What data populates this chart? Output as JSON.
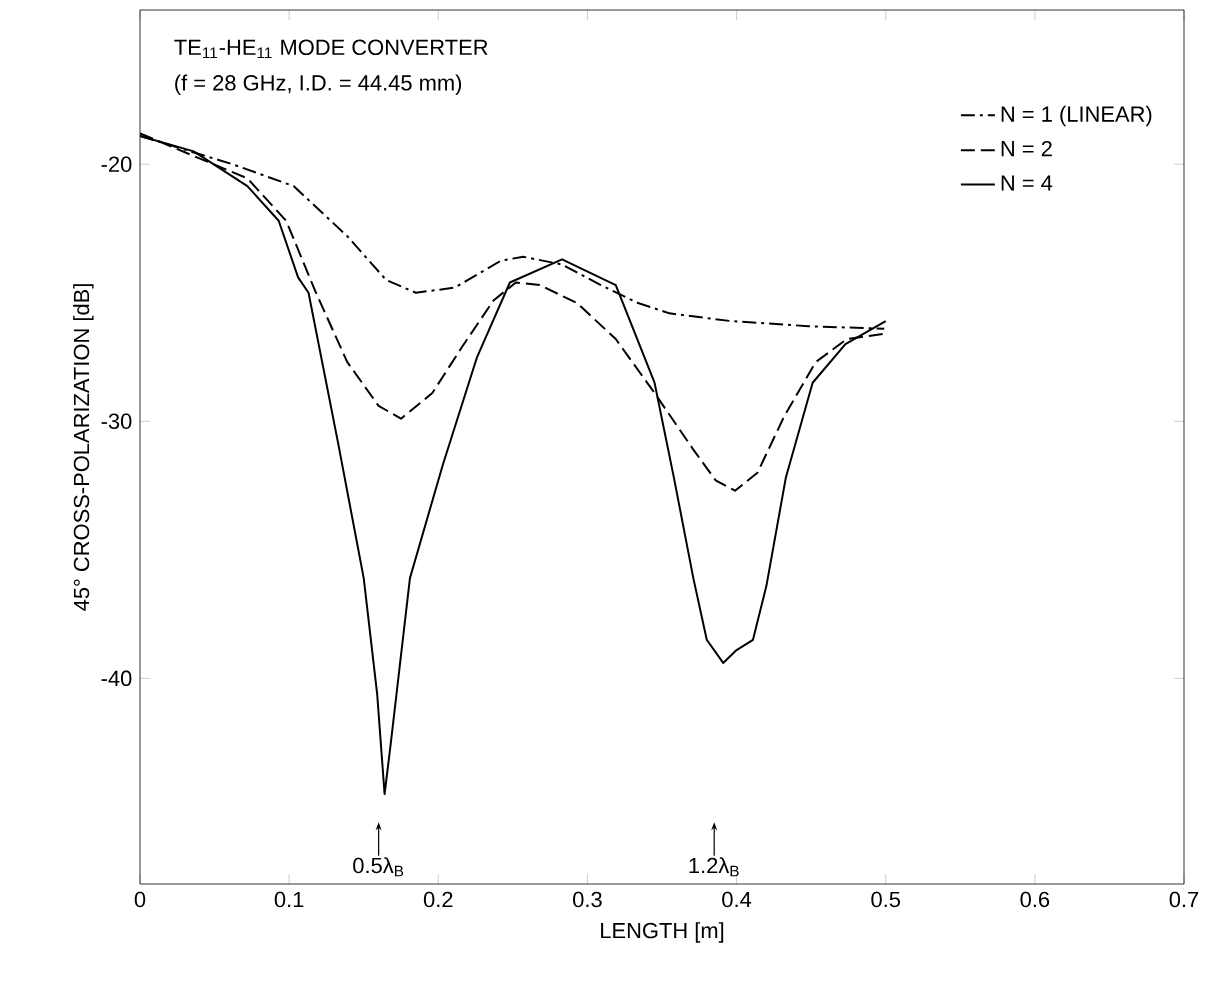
{
  "chart_data": {
    "type": "line",
    "title": "TE$_{11}$-HE$_{11}$ MODE CONVERTER",
    "subtitle": "(f = 28 GHz, I.D. = 44.45 mm)",
    "xlabel": "LENGTH [m]",
    "ylabel": "45° CROSS-POLARIZATION      [dB]",
    "xlim": [
      0,
      0.7
    ],
    "ylim": [
      -48,
      -14
    ],
    "xticks": [
      0,
      {
        "value": 0.1,
        "label": "0.1"
      },
      {
        "value": 0.2,
        "label": "0.2"
      },
      {
        "value": 0.3,
        "label": "0.3"
      },
      {
        "value": 0.4,
        "label": "0.4"
      },
      {
        "value": 0.5,
        "label": "0.5"
      },
      {
        "value": 0.6,
        "label": "0.6"
      },
      {
        "value": 0.7,
        "label": "0.7"
      }
    ],
    "yticks": [
      -20,
      -30,
      -40
    ],
    "legend": "top right",
    "grid": false,
    "marker": "none",
    "annotations": [
      {
        "text": "0.5λ$_{B}$",
        "x": 0.16,
        "y": -45.6
      },
      {
        "text": "1.2λ$_{B}$",
        "x": 0.385,
        "y": -45.6
      }
    ],
    "series": [
      {
        "name": "N = 1 (LINEAR)",
        "color": "#000000",
        "line_style": "dashdot",
        "x": [
          0,
          0.062,
          0.103,
          0.139,
          0.165,
          0.185,
          0.211,
          0.242,
          0.257,
          0.283,
          0.309,
          0.334,
          0.355,
          0.396,
          0.448,
          0.499
        ],
        "values": [
          -18.9,
          -20.0,
          -20.85,
          -22.8,
          -24.5,
          -25.0,
          -24.8,
          -23.75,
          -23.6,
          -23.9,
          -24.7,
          -25.4,
          -25.8,
          -26.1,
          -26.3,
          -26.4
        ]
      },
      {
        "name": "N = 2",
        "color": "#000000",
        "line_style": "dashed",
        "x": [
          0,
          0.041,
          0.072,
          0.098,
          0.118,
          0.139,
          0.16,
          0.175,
          0.196,
          0.216,
          0.237,
          0.252,
          0.268,
          0.293,
          0.319,
          0.345,
          0.371,
          0.386,
          0.399,
          0.414,
          0.432,
          0.453,
          0.474,
          0.499
        ],
        "values": [
          -18.8,
          -19.8,
          -20.55,
          -22.2,
          -25.0,
          -27.7,
          -29.4,
          -29.9,
          -28.9,
          -27.1,
          -25.3,
          -24.6,
          -24.7,
          -25.4,
          -26.8,
          -28.9,
          -31.1,
          -32.3,
          -32.7,
          -32.0,
          -29.8,
          -27.7,
          -26.8,
          -26.6
        ]
      },
      {
        "name": "N = 4",
        "color": "#000000",
        "line_style": "solid",
        "x": [
          0,
          0.036,
          0.072,
          0.093,
          0.106,
          0.113,
          0.133,
          0.15,
          0.159,
          0.164,
          0.168,
          0.181,
          0.203,
          0.226,
          0.248,
          0.283,
          0.319,
          0.345,
          0.358,
          0.371,
          0.38,
          0.391,
          0.4,
          0.411,
          0.42,
          0.433,
          0.451,
          0.473,
          0.5
        ],
        "values": [
          -18.9,
          -19.5,
          -20.85,
          -22.2,
          -24.4,
          -25.0,
          -30.9,
          -36.1,
          -40.6,
          -44.5,
          -42.6,
          -36.1,
          -31.7,
          -27.5,
          -24.6,
          -23.7,
          -24.7,
          -28.5,
          -32.2,
          -36.1,
          -38.5,
          -39.4,
          -38.9,
          -38.5,
          -36.4,
          -32.2,
          -28.5,
          -27.0,
          -26.1
        ]
      }
    ]
  }
}
